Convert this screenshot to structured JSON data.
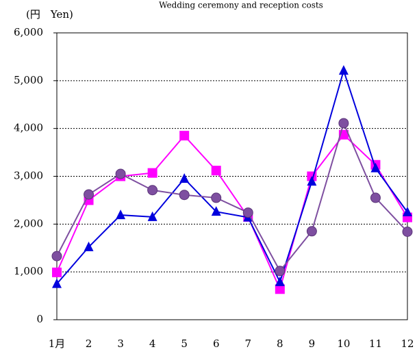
{
  "chart_data": {
    "type": "line",
    "title": "Wedding ceremony and reception costs",
    "y_label": "(円　Yen)",
    "categories": [
      "1月",
      "2",
      "3",
      "4",
      "5",
      "6",
      "7",
      "8",
      "9",
      "10",
      "11",
      "12"
    ],
    "series": [
      {
        "color": "#ff00ff",
        "marker": "square",
        "values": [
          990,
          2500,
          3000,
          3070,
          3850,
          3120,
          2150,
          640,
          3000,
          3870,
          3240,
          2140
        ]
      },
      {
        "color": "#0000dd",
        "marker": "triangle",
        "values": [
          750,
          1520,
          2190,
          2150,
          2950,
          2260,
          2140,
          790,
          2890,
          5210,
          3170,
          2250
        ]
      },
      {
        "color": "#7e4fa0",
        "marker": "circle",
        "values": [
          1330,
          2620,
          3050,
          2710,
          2610,
          2550,
          2240,
          1020,
          1850,
          4110,
          2550,
          1840
        ]
      }
    ],
    "ylim": [
      0,
      6000
    ],
    "yticks": [
      0,
      {
        "value": 1000,
        "label": "1,000"
      },
      {
        "value": 2000,
        "label": "2,000"
      },
      {
        "value": 3000,
        "label": "3,000"
      },
      {
        "value": 4000,
        "label": "4,000"
      },
      {
        "value": 5000,
        "label": "5,000"
      },
      {
        "value": 6000,
        "label": "6,000"
      }
    ],
    "grid": true
  }
}
